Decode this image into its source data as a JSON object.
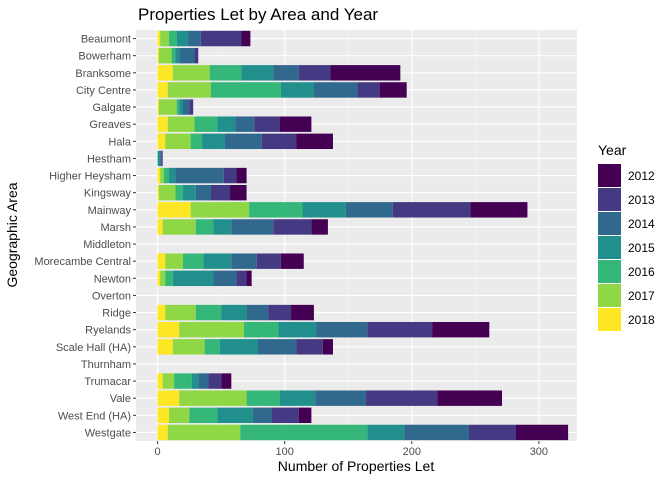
{
  "chart_data": {
    "type": "bar",
    "orientation": "horizontal",
    "stacked": true,
    "title": "Properties Let by Area and Year",
    "xlabel": "Number of Properties Let",
    "ylabel": "Geographic Area",
    "xlim": [
      -17,
      330
    ],
    "xticks": [
      0,
      100,
      200,
      300
    ],
    "grid": true,
    "legend": {
      "title": "Year",
      "position": "right"
    },
    "categories": [
      "Beaumont",
      "Bowerham",
      "Branksome",
      "City Centre",
      "Galgate",
      "Greaves",
      "Hala",
      "Hestham",
      "Higher Heysham",
      "Kingsway",
      "Mainway",
      "Marsh",
      "Middleton",
      "Morecambe Central",
      "Newton",
      "Overton",
      "Ridge",
      "Ryelands",
      "Scale Hall (HA)",
      "Thurnham",
      "Trumacar",
      "Vale",
      "West End (HA)",
      "Westgate"
    ],
    "stack_order": [
      "2018",
      "2017",
      "2016",
      "2015",
      "2014",
      "2013",
      "2012"
    ],
    "series": [
      {
        "name": "2012",
        "color": "#440154",
        "values": [
          7,
          0,
          55,
          21,
          0,
          25,
          29,
          0,
          8,
          13,
          45,
          13,
          0,
          18,
          4,
          0,
          18,
          45,
          8,
          0,
          8,
          51,
          10,
          41
        ]
      },
      {
        "name": "2013",
        "color": "#443A83",
        "values": [
          32,
          3,
          25,
          18,
          3,
          20,
          27,
          1,
          10,
          15,
          61,
          30,
          0,
          19,
          8,
          0,
          18,
          51,
          21,
          0,
          10,
          56,
          21,
          37
        ]
      },
      {
        "name": "2014",
        "color": "#31688E",
        "values": [
          10,
          12,
          20,
          34,
          5,
          15,
          29,
          1,
          38,
          12,
          37,
          33,
          0,
          20,
          18,
          0,
          17,
          40,
          30,
          0,
          8,
          40,
          15,
          51
        ]
      },
      {
        "name": "2015",
        "color": "#21908C",
        "values": [
          9,
          3,
          25,
          26,
          3,
          14,
          18,
          2,
          5,
          10,
          34,
          14,
          0,
          22,
          32,
          0,
          20,
          30,
          30,
          0,
          5,
          28,
          28,
          29
        ]
      },
      {
        "name": "2016",
        "color": "#35B779",
        "values": [
          6,
          3,
          25,
          55,
          2,
          18,
          9,
          0,
          4,
          6,
          42,
          14,
          0,
          16,
          6,
          0,
          20,
          27,
          12,
          0,
          14,
          26,
          22,
          100
        ]
      },
      {
        "name": "2017",
        "color": "#8FD744",
        "values": [
          7,
          10,
          29,
          34,
          14,
          21,
          20,
          0,
          3,
          13,
          46,
          26,
          0,
          14,
          4,
          0,
          24,
          51,
          25,
          0,
          9,
          53,
          16,
          57
        ]
      },
      {
        "name": "2018",
        "color": "#FDE725",
        "values": [
          2,
          1,
          12,
          8,
          1,
          8,
          6,
          0,
          2,
          1,
          26,
          4,
          0,
          6,
          2,
          0,
          6,
          17,
          12,
          0,
          4,
          17,
          9,
          8
        ]
      }
    ]
  }
}
